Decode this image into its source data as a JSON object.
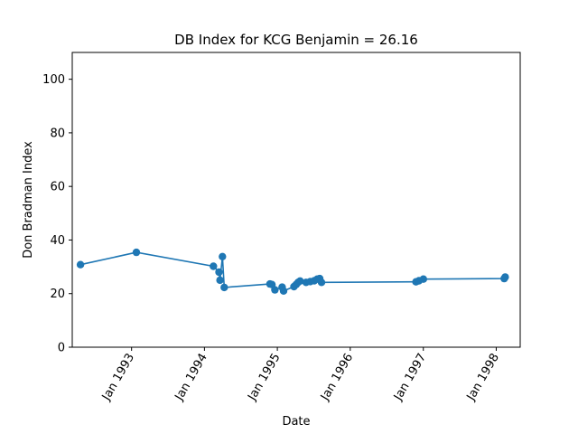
{
  "chart_data": {
    "type": "line",
    "title": "DB Index for KCG Benjamin = 26.16",
    "xlabel": "Date",
    "ylabel": "Don Bradman Index",
    "ylim": [
      0,
      110
    ],
    "xlim": [
      "1992-03-10",
      "1998-05-01"
    ],
    "grid": false,
    "marker": "circle",
    "color": "#1f77b4",
    "yticks": [
      0,
      20,
      40,
      60,
      80,
      100
    ],
    "xticks": [
      {
        "date": "1993-01-01",
        "label": "Jan 1993"
      },
      {
        "date": "1994-01-01",
        "label": "Jan 1994"
      },
      {
        "date": "1995-01-01",
        "label": "Jan 1995"
      },
      {
        "date": "1996-01-01",
        "label": "Jan 1996"
      },
      {
        "date": "1997-01-01",
        "label": "Jan 1997"
      },
      {
        "date": "1998-01-01",
        "label": "Jan 1998"
      }
    ],
    "points": [
      {
        "x": "1992-04-20",
        "y": 30.8
      },
      {
        "x": "1993-01-25",
        "y": 35.4
      },
      {
        "x": "1994-02-15",
        "y": 30.2
      },
      {
        "x": "1994-03-15",
        "y": 28.0
      },
      {
        "x": "1994-03-20",
        "y": 25.0
      },
      {
        "x": "1994-04-01",
        "y": 33.8
      },
      {
        "x": "1994-04-10",
        "y": 22.3
      },
      {
        "x": "1994-11-25",
        "y": 23.6
      },
      {
        "x": "1994-12-05",
        "y": 23.4
      },
      {
        "x": "1994-12-20",
        "y": 21.4
      },
      {
        "x": "1995-01-25",
        "y": 22.4
      },
      {
        "x": "1995-02-01",
        "y": 21.0
      },
      {
        "x": "1995-03-25",
        "y": 22.6
      },
      {
        "x": "1995-04-05",
        "y": 23.4
      },
      {
        "x": "1995-04-15",
        "y": 24.2
      },
      {
        "x": "1995-04-25",
        "y": 24.7
      },
      {
        "x": "1995-05-25",
        "y": 24.2
      },
      {
        "x": "1995-06-15",
        "y": 24.5
      },
      {
        "x": "1995-07-05",
        "y": 24.8
      },
      {
        "x": "1995-07-20",
        "y": 25.4
      },
      {
        "x": "1995-08-01",
        "y": 25.6
      },
      {
        "x": "1995-08-10",
        "y": 24.2
      },
      {
        "x": "1996-11-25",
        "y": 24.4
      },
      {
        "x": "1996-12-10",
        "y": 24.8
      },
      {
        "x": "1997-01-01",
        "y": 25.4
      },
      {
        "x": "1998-02-10",
        "y": 25.6
      },
      {
        "x": "1998-02-15",
        "y": 26.2
      }
    ]
  }
}
